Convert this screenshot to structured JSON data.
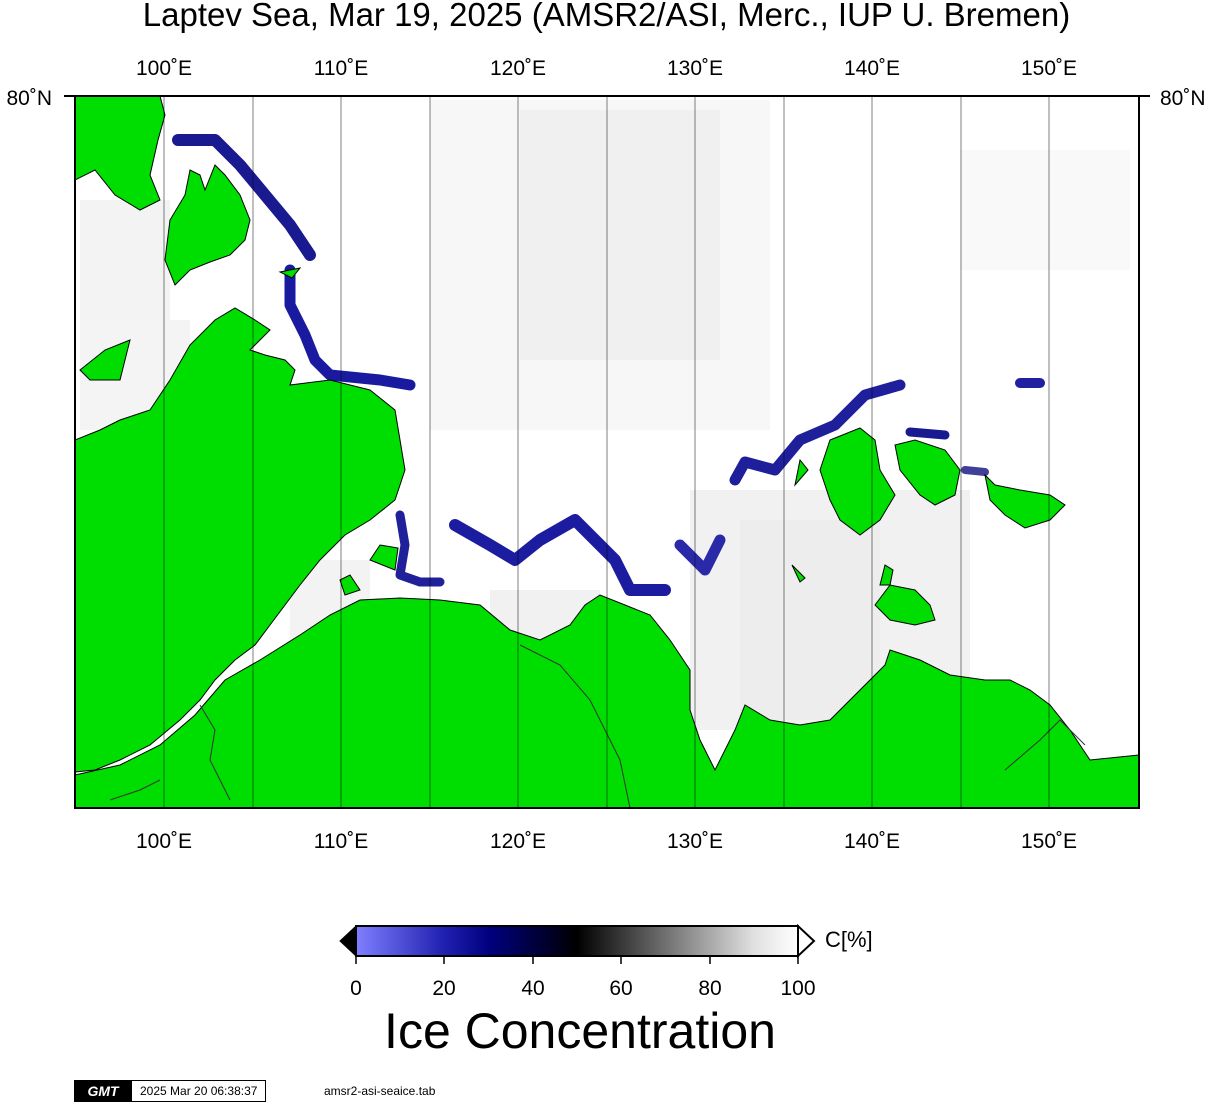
{
  "title": "Laptev Sea, Mar 19, 2025 (AMSR2/ASI, Merc., IUP U. Bremen)",
  "map": {
    "lon_labels": [
      "100˚E",
      "110˚E",
      "120˚E",
      "130˚E",
      "140˚E",
      "150˚E"
    ],
    "lat_labels": [
      "80˚N",
      "80˚N"
    ],
    "land_color": "#00dd00",
    "water_color": "#ffffff"
  },
  "colorbar": {
    "ticks": [
      "0",
      "20",
      "40",
      "60",
      "80",
      "100"
    ],
    "unit": "C[%]",
    "title": "Ice Concentration",
    "colors": [
      "#7f7fff",
      "#0000a0",
      "#000000",
      "#808080",
      "#ffffff"
    ]
  },
  "footer": {
    "logo": "GMT",
    "timestamp": "2025 Mar 20 06:38:37",
    "file": "amsr2-asi-seaice.tab"
  }
}
